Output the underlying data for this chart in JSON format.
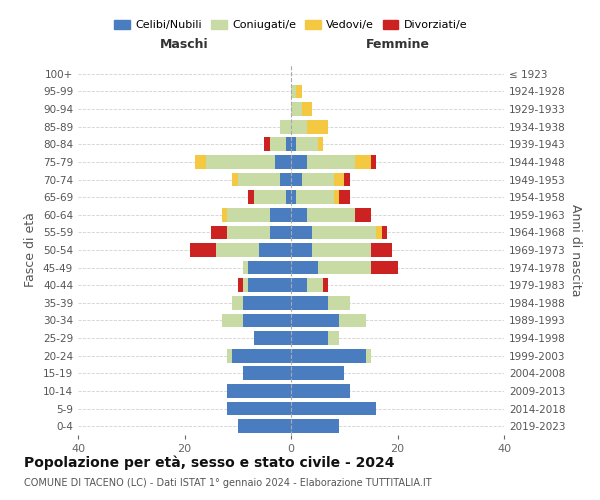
{
  "age_groups": [
    "0-4",
    "5-9",
    "10-14",
    "15-19",
    "20-24",
    "25-29",
    "30-34",
    "35-39",
    "40-44",
    "45-49",
    "50-54",
    "55-59",
    "60-64",
    "65-69",
    "70-74",
    "75-79",
    "80-84",
    "85-89",
    "90-94",
    "95-99",
    "100+"
  ],
  "birth_years": [
    "2019-2023",
    "2014-2018",
    "2009-2013",
    "2004-2008",
    "1999-2003",
    "1994-1998",
    "1989-1993",
    "1984-1988",
    "1979-1983",
    "1974-1978",
    "1969-1973",
    "1964-1968",
    "1959-1963",
    "1954-1958",
    "1949-1953",
    "1944-1948",
    "1939-1943",
    "1934-1938",
    "1929-1933",
    "1924-1928",
    "≤ 1923"
  ],
  "colors": {
    "celibi": "#4a7dc0",
    "coniugati": "#c8dba4",
    "vedovi": "#f5c842",
    "divorziati": "#cc2222"
  },
  "maschi": {
    "celibi": [
      10,
      12,
      12,
      9,
      11,
      7,
      9,
      9,
      8,
      8,
      6,
      4,
      4,
      1,
      2,
      3,
      1,
      0,
      0,
      0,
      0
    ],
    "coniugati": [
      0,
      0,
      0,
      0,
      1,
      0,
      4,
      2,
      1,
      1,
      8,
      8,
      8,
      6,
      8,
      13,
      3,
      2,
      0,
      0,
      0
    ],
    "vedovi": [
      0,
      0,
      0,
      0,
      0,
      0,
      0,
      0,
      0,
      0,
      0,
      0,
      1,
      0,
      1,
      2,
      0,
      0,
      0,
      0,
      0
    ],
    "divorziati": [
      0,
      0,
      0,
      0,
      0,
      0,
      0,
      0,
      1,
      0,
      5,
      3,
      0,
      1,
      0,
      0,
      1,
      0,
      0,
      0,
      0
    ]
  },
  "femmine": {
    "celibi": [
      9,
      16,
      11,
      10,
      14,
      7,
      9,
      7,
      3,
      5,
      4,
      4,
      3,
      1,
      2,
      3,
      1,
      0,
      0,
      0,
      0
    ],
    "coniugati": [
      0,
      0,
      0,
      0,
      1,
      2,
      5,
      4,
      3,
      10,
      11,
      12,
      9,
      7,
      6,
      9,
      4,
      3,
      2,
      1,
      0
    ],
    "vedovi": [
      0,
      0,
      0,
      0,
      0,
      0,
      0,
      0,
      0,
      0,
      0,
      1,
      0,
      1,
      2,
      3,
      1,
      4,
      2,
      1,
      0
    ],
    "divorziati": [
      0,
      0,
      0,
      0,
      0,
      0,
      0,
      0,
      1,
      5,
      4,
      1,
      3,
      2,
      1,
      1,
      0,
      0,
      0,
      0,
      0
    ]
  },
  "xlim": 40,
  "title": "Popolazione per età, sesso e stato civile - 2024",
  "subtitle": "COMUNE DI TACENO (LC) - Dati ISTAT 1° gennaio 2024 - Elaborazione TUTTITALIA.IT",
  "xlabel_left": "Maschi",
  "xlabel_right": "Femmine",
  "ylabel_left": "Fasce di età",
  "ylabel_right": "Anni di nascita",
  "legend_labels": [
    "Celibi/Nubili",
    "Coniugati/e",
    "Vedovi/e",
    "Divorziati/e"
  ],
  "background_color": "#ffffff",
  "grid_color": "#cccccc"
}
